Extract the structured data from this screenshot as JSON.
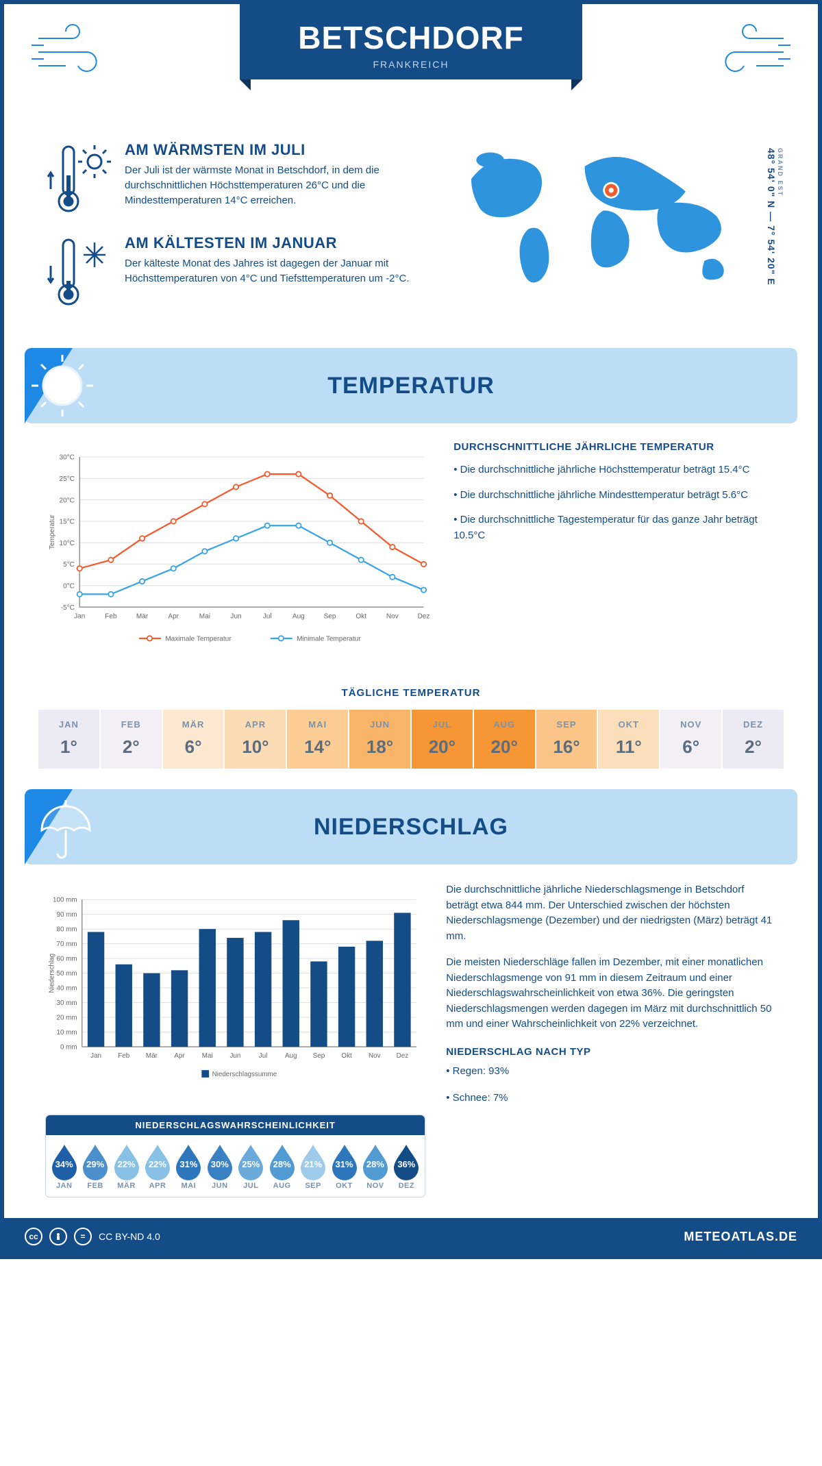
{
  "header": {
    "city": "BETSCHDORF",
    "country": "FRANKREICH",
    "coords": "48° 54' 0\" N — 7° 54' 20\" E",
    "region": "GRAND EST"
  },
  "facts": {
    "warm": {
      "title": "AM WÄRMSTEN IM JULI",
      "text": "Der Juli ist der wärmste Monat in Betschdorf, in dem die durchschnittlichen Höchsttemperaturen 26°C und die Mindesttemperaturen 14°C erreichen."
    },
    "cold": {
      "title": "AM KÄLTESTEN IM JANUAR",
      "text": "Der kälteste Monat des Jahres ist dagegen der Januar mit Höchsttemperaturen von 4°C und Tiefsttemperaturen um -2°C."
    }
  },
  "section_temp_title": "TEMPERATUR",
  "temp_chart": {
    "type": "line",
    "months": [
      "Jan",
      "Feb",
      "Mär",
      "Apr",
      "Mai",
      "Jun",
      "Jul",
      "Aug",
      "Sep",
      "Okt",
      "Nov",
      "Dez"
    ],
    "max": [
      4,
      6,
      11,
      15,
      19,
      23,
      26,
      26,
      21,
      15,
      9,
      5
    ],
    "min": [
      -2,
      -2,
      1,
      4,
      8,
      11,
      14,
      14,
      10,
      6,
      2,
      -1
    ],
    "max_color": "#f25c2e",
    "min_color": "#3aa5e5",
    "marker_fill": "#ffffff",
    "ymin": -5,
    "ymax": 30,
    "ystep": 5,
    "grid_color": "#dddddd",
    "axis_color": "#888888",
    "ylabel": "Temperatur",
    "legend_max": "Maximale Temperatur",
    "legend_min": "Minimale Temperatur",
    "axis_fontsize": 11
  },
  "temp_text": {
    "heading": "DURCHSCHNITTLICHE JÄHRLICHE TEMPERATUR",
    "b1": "• Die durchschnittliche jährliche Höchsttemperatur beträgt 15.4°C",
    "b2": "• Die durchschnittliche jährliche Mindesttemperatur beträgt 5.6°C",
    "b3": "• Die durchschnittliche Tagestemperatur für das ganze Jahr beträgt 10.5°C"
  },
  "daily": {
    "title": "TÄGLICHE TEMPERATUR",
    "months": [
      "JAN",
      "FEB",
      "MÄR",
      "APR",
      "MAI",
      "JUN",
      "JUL",
      "AUG",
      "SEP",
      "OKT",
      "NOV",
      "DEZ"
    ],
    "values": [
      "1°",
      "2°",
      "6°",
      "10°",
      "14°",
      "18°",
      "20°",
      "20°",
      "16°",
      "11°",
      "6°",
      "2°"
    ],
    "colors": [
      "#eceaf4",
      "#f2f0f4",
      "#fde9d2",
      "#fcdcb5",
      "#fbcd94",
      "#f9b567",
      "#f79635",
      "#f79635",
      "#fac586",
      "#fcdfba",
      "#f2f0f4",
      "#eceaf4"
    ]
  },
  "section_precip_title": "NIEDERSCHLAG",
  "precip_chart": {
    "type": "bar",
    "months": [
      "Jan",
      "Feb",
      "Mär",
      "Apr",
      "Mai",
      "Jun",
      "Jul",
      "Aug",
      "Sep",
      "Okt",
      "Nov",
      "Dez"
    ],
    "values": [
      78,
      56,
      50,
      52,
      80,
      74,
      78,
      86,
      58,
      68,
      72,
      91
    ],
    "bar_color": "#134c87",
    "ymin": 0,
    "ymax": 100,
    "ystep": 10,
    "ylabel": "Niederschlag",
    "legend": "Niederschlagssumme",
    "grid_color": "#dddddd",
    "axis_color": "#888888",
    "bar_width": 0.6,
    "axis_fontsize": 11
  },
  "precip_text": {
    "p1": "Die durchschnittliche jährliche Niederschlagsmenge in Betschdorf beträgt etwa 844 mm. Der Unterschied zwischen der höchsten Niederschlagsmenge (Dezember) und der niedrigsten (März) beträgt 41 mm.",
    "p2": "Die meisten Niederschläge fallen im Dezember, mit einer monatlichen Niederschlagsmenge von 91 mm in diesem Zeitraum und einer Niederschlagswahrscheinlichkeit von etwa 36%. Die geringsten Niederschlagsmengen werden dagegen im März mit durchschnittlich 50 mm und einer Wahrscheinlichkeit von 22% verzeichnet.",
    "type_heading": "NIEDERSCHLAG NACH TYP",
    "type_rain": "• Regen: 93%",
    "type_snow": "• Schnee: 7%"
  },
  "prob": {
    "title": "NIEDERSCHLAGSWAHRSCHEINLICHKEIT",
    "months": [
      "JAN",
      "FEB",
      "MÄR",
      "APR",
      "MAI",
      "JUN",
      "JUL",
      "AUG",
      "SEP",
      "OKT",
      "NOV",
      "DEZ"
    ],
    "values": [
      "34%",
      "29%",
      "22%",
      "22%",
      "31%",
      "30%",
      "25%",
      "28%",
      "21%",
      "31%",
      "28%",
      "36%"
    ],
    "colors": [
      "#1f5fa7",
      "#4b8fcc",
      "#89c0e6",
      "#89c0e6",
      "#2f77bd",
      "#3a81c3",
      "#6aa9da",
      "#519bd2",
      "#9ecbea",
      "#2f77bd",
      "#519bd2",
      "#134c87"
    ]
  },
  "footer": {
    "license": "CC BY-ND 4.0",
    "site": "METEOATLAS.DE"
  },
  "colors": {
    "primary": "#134c87",
    "light": "#bcddf6",
    "accent": "#1e88e5",
    "marker": "#f25c2e"
  }
}
